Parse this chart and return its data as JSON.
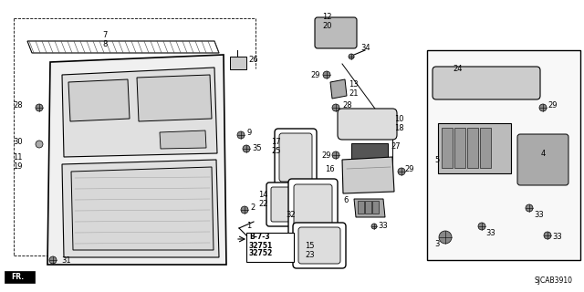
{
  "bg_color": "#ffffff",
  "fig_width": 6.4,
  "fig_height": 3.2,
  "dpi": 100,
  "diagram_code": "SJCAB3910",
  "line_color": "#000000",
  "text_color": "#000000"
}
